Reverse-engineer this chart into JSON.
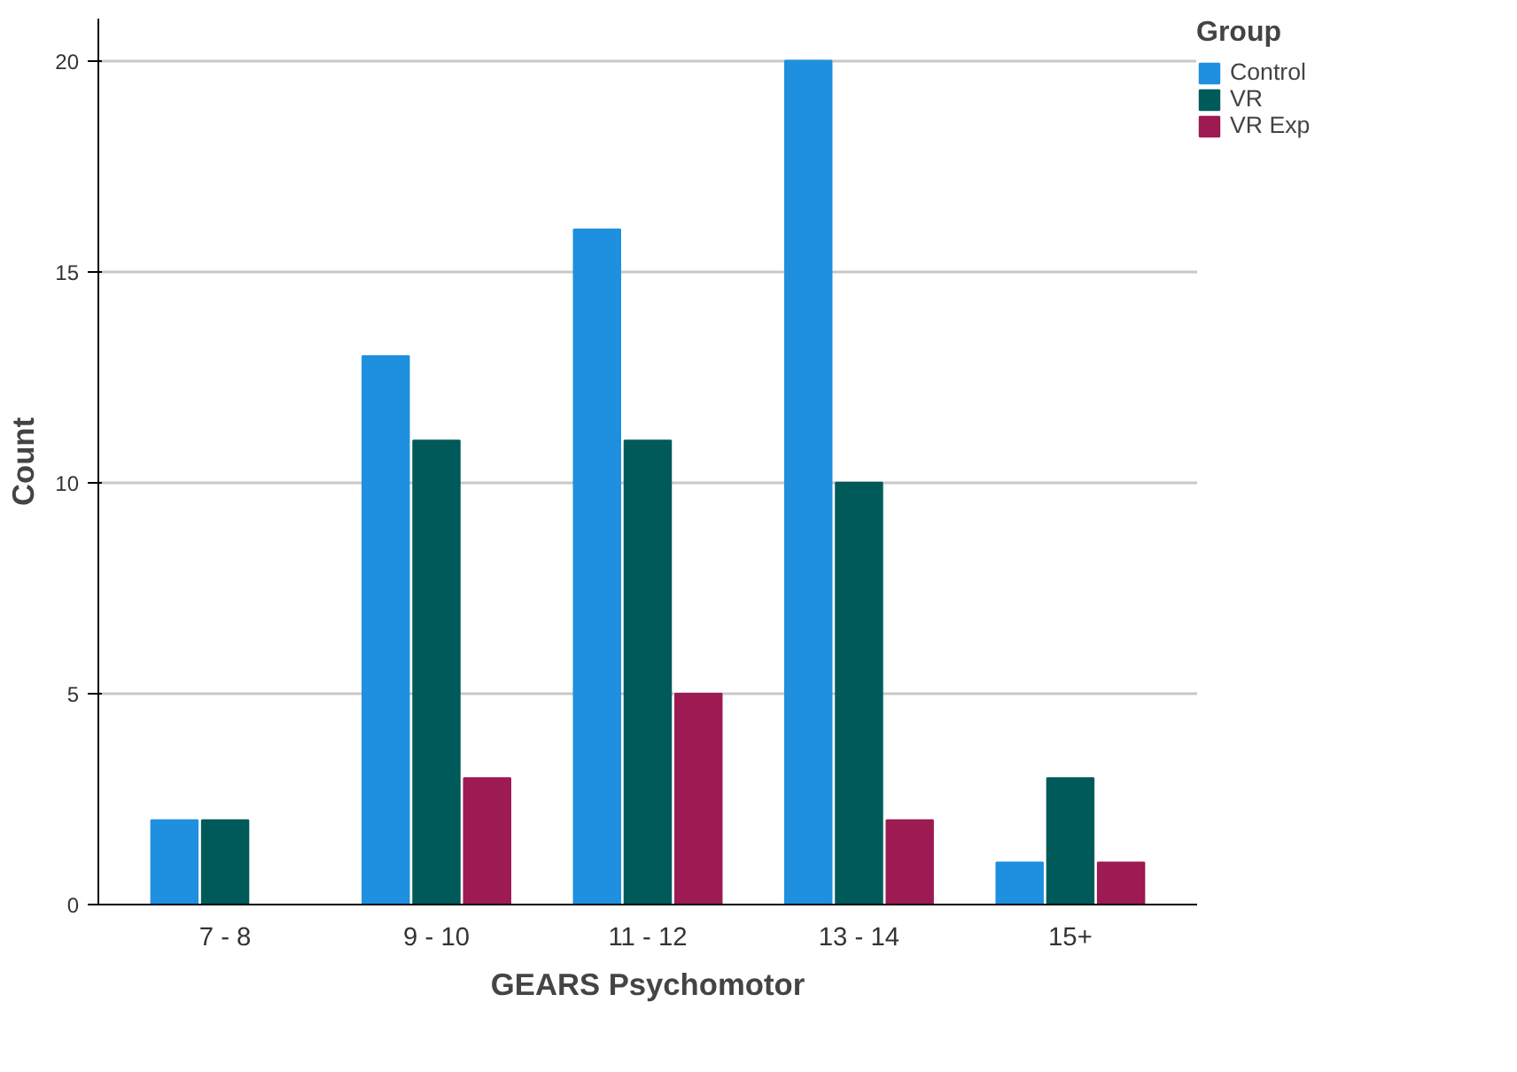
{
  "chart_data": {
    "type": "bar",
    "xlabel": "GEARS Psychomotor",
    "ylabel": "Count",
    "legend_title": "Group",
    "categories": [
      "7 - 8",
      "9 - 10",
      "11 - 12",
      "13 - 14",
      "15+"
    ],
    "series": [
      {
        "name": "Control",
        "color": "#1f8fe0",
        "values": [
          2,
          13,
          16,
          20,
          1
        ]
      },
      {
        "name": "VR",
        "color": "#005a5a",
        "values": [
          2,
          11,
          11,
          10,
          3
        ]
      },
      {
        "name": "VR Exp",
        "color": "#9e1a52",
        "values": [
          0,
          3,
          5,
          2,
          1
        ]
      }
    ],
    "ylim": [
      0,
      21
    ],
    "yticks": [
      0,
      5,
      10,
      15,
      20
    ],
    "grid": "y",
    "legend": "top right"
  }
}
